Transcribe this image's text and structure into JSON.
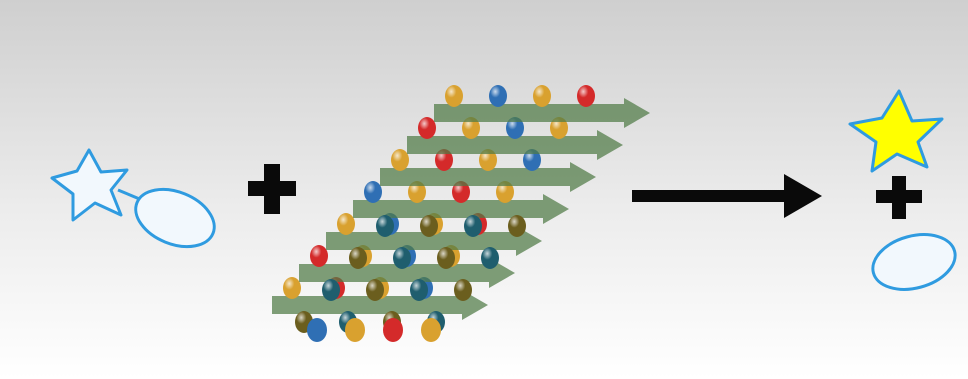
{
  "colors": {
    "bg_top": "#cfcfcf",
    "bg_bottom": "#ffffff",
    "outline_blue": "#2f9be0",
    "substrate_fill": "#f2f8fd",
    "product_star_fill": "#ffff00",
    "symbol_black": "#0a0a0a",
    "sheet_green": "#4f7a45",
    "bead_red": "#d42a2a",
    "bead_yellow": "#d9a12f",
    "bead_blue": "#2f6fb4",
    "bead_teal": "#1f5e6e",
    "bead_olive": "#6b5e1e"
  },
  "icons": {
    "substrate_star": "star-outline-icon",
    "substrate_ellipse": "ellipse-outline-icon",
    "plus": "plus-icon",
    "catalyst": "beta-sheet-bead-array-icon",
    "arrow": "right-arrow-icon",
    "product_star": "star-filled-icon",
    "product_ellipse": "ellipse-outline-icon"
  }
}
